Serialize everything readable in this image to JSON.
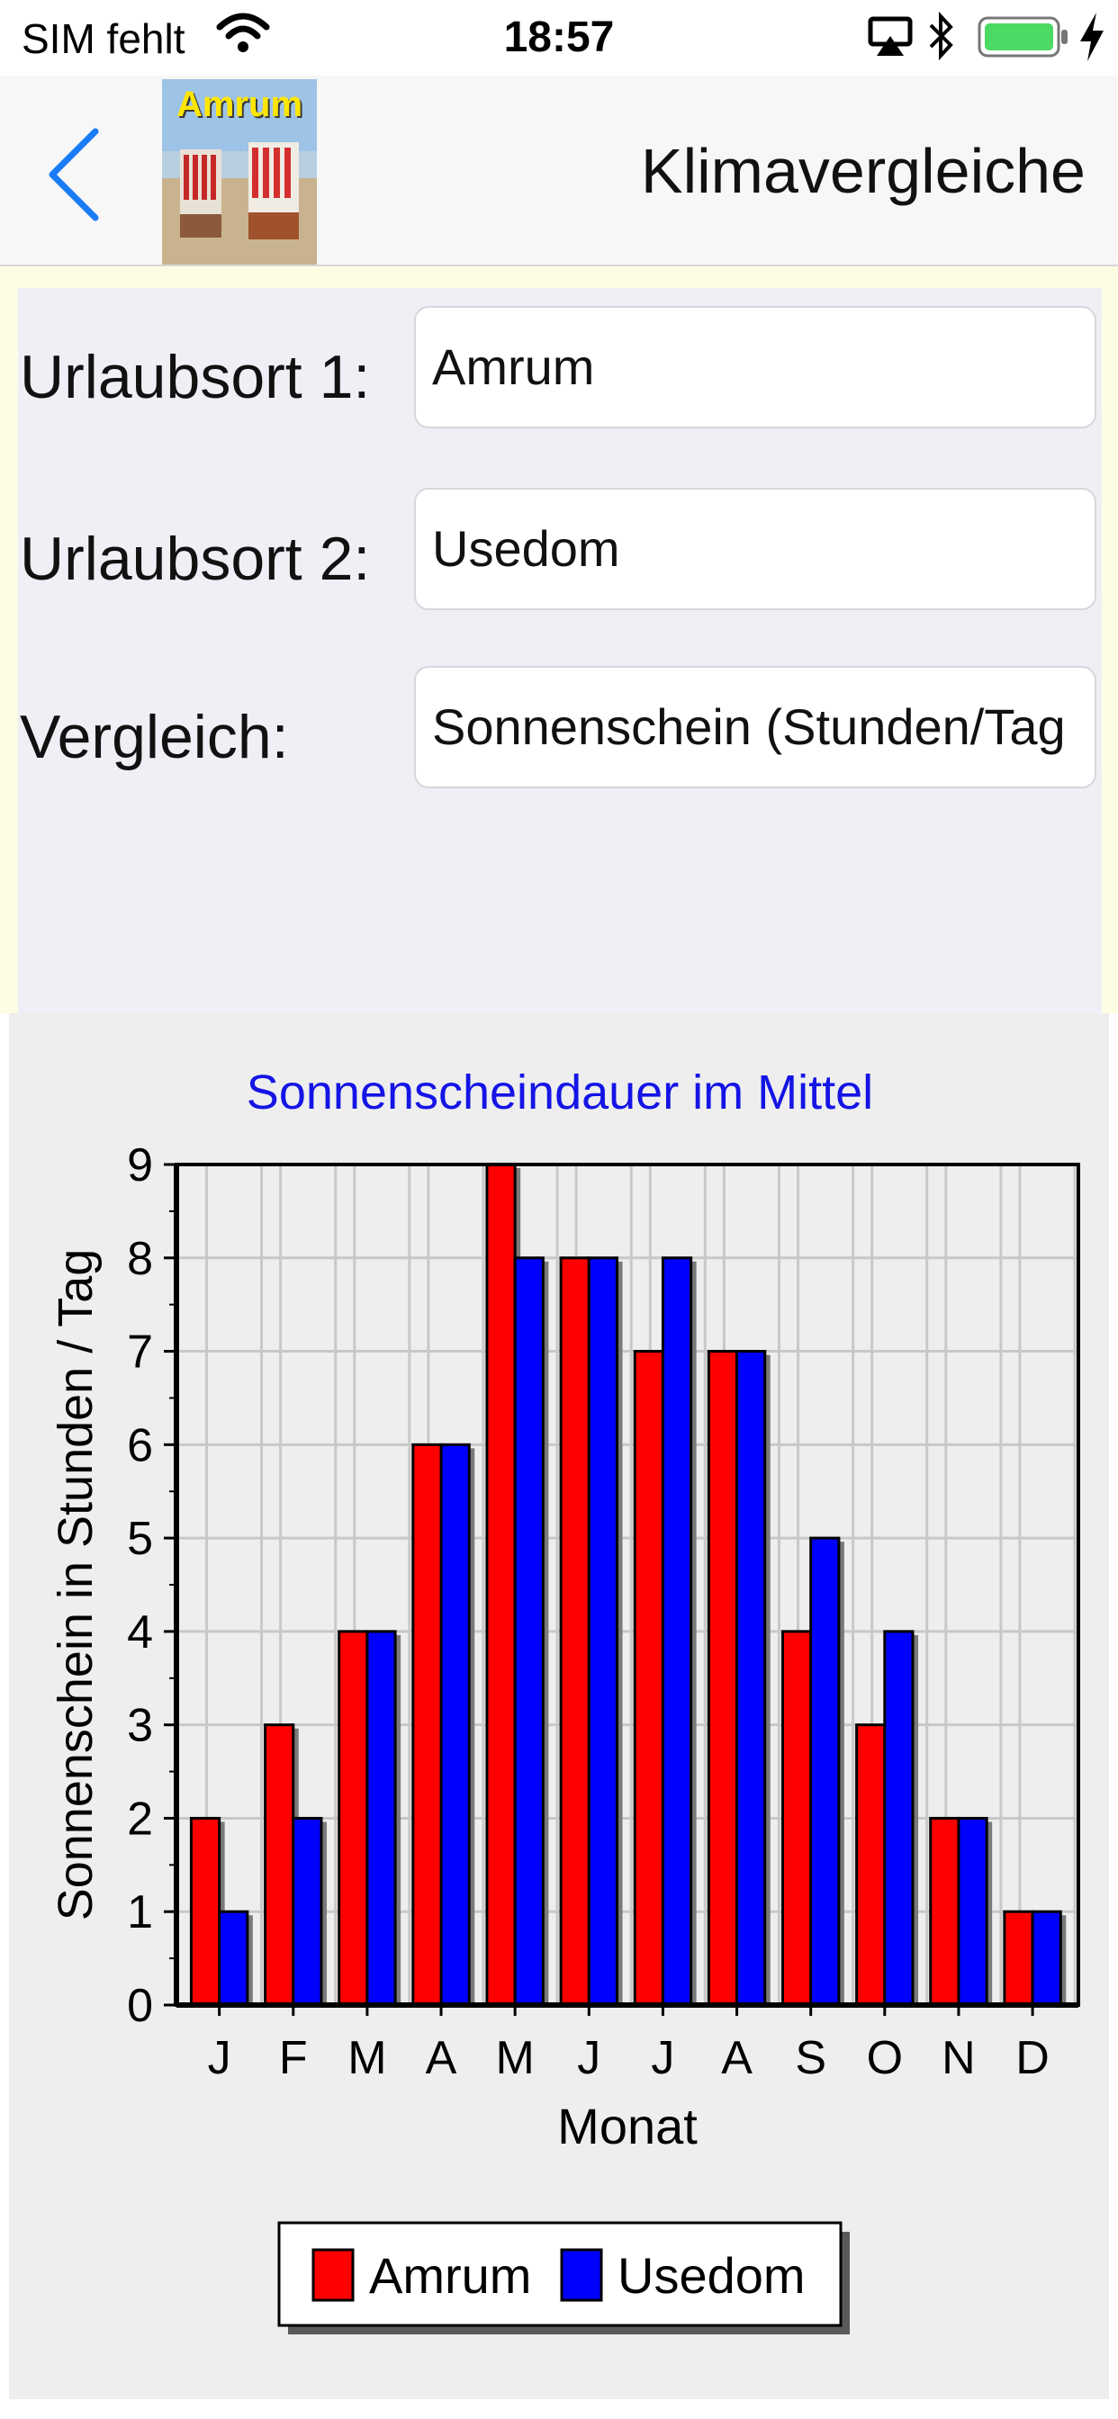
{
  "status_bar": {
    "carrier": "SIM fehlt",
    "time": "18:57",
    "icons": [
      "wifi-icon",
      "airplay-icon",
      "bluetooth-icon",
      "battery-icon",
      "charging-bolt-icon"
    ]
  },
  "nav": {
    "title": "Klimavergleiche",
    "thumbnail_label": "Amrum",
    "back_icon": "chevron-left-icon"
  },
  "form": {
    "fields": [
      {
        "label": "Urlaubsort 1:",
        "value": "Amrum"
      },
      {
        "label": "Urlaubsort 2:",
        "value": "Usedom"
      },
      {
        "label": "Vergleich:",
        "value": "Sonnenschein (Stunden/Tag"
      }
    ]
  },
  "chart_data": {
    "type": "bar",
    "title": "Sonnenscheindauer im Mittel",
    "xlabel": "Monat",
    "ylabel": "Sonnenschein in Stunden / Tag",
    "categories": [
      "J",
      "F",
      "M",
      "A",
      "M",
      "J",
      "J",
      "A",
      "S",
      "O",
      "N",
      "D"
    ],
    "series": [
      {
        "name": "Amrum",
        "color": "#ff0000",
        "values": [
          2,
          3,
          4,
          6,
          9,
          8,
          7,
          7,
          4,
          3,
          2,
          1
        ]
      },
      {
        "name": "Usedom",
        "color": "#0000ff",
        "values": [
          1,
          2,
          4,
          6,
          8,
          8,
          8,
          7,
          5,
          4,
          2,
          1
        ]
      }
    ],
    "ylim": [
      0,
      9
    ],
    "yticks": [
      "0",
      "1",
      "2",
      "3",
      "4",
      "5",
      "6",
      "7",
      "8",
      "9"
    ],
    "grid": true,
    "legend": "bottom-center"
  }
}
